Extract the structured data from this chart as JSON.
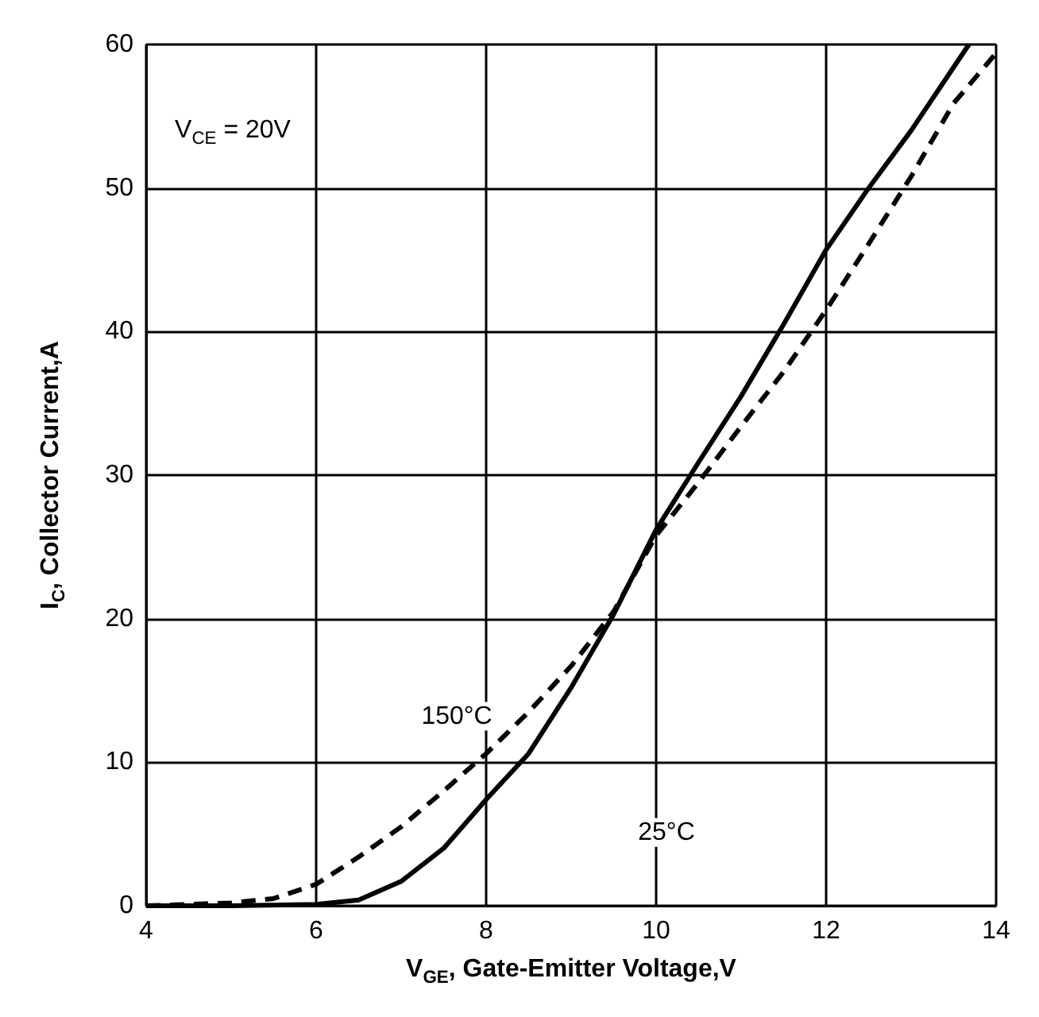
{
  "chart_data": {
    "type": "line",
    "xlabel": "V$_{GE}$, Gate-Emitter Voltage,V",
    "ylabel": "I$_{C}$, Collector Current,A",
    "xlim": [
      4,
      14
    ],
    "xticks": [
      4,
      6,
      8,
      10,
      12,
      14
    ],
    "ylim": [
      0,
      60
    ],
    "yticks": [
      0,
      10,
      20,
      30,
      40,
      50,
      60
    ],
    "grid": true,
    "marker": "none",
    "annotations": [
      "V$_{CE}$ = 20V",
      "150°C",
      "25°C"
    ],
    "series": [
      {
        "color": "#000000",
        "line_style": "solid",
        "x": [
          4,
          5,
          6,
          6.5,
          7,
          7.5,
          8,
          8.5,
          9,
          9.5,
          10,
          10.5,
          11,
          11.5,
          12,
          12.5,
          13,
          13.68
        ],
        "values": [
          0,
          0,
          0.1,
          0.4,
          1.7,
          4,
          7.4,
          10.6,
          15.2,
          20.3,
          26.2,
          30.9,
          35.5,
          40.5,
          45.7,
          50,
          54,
          60
        ]
      },
      {
        "color": "#000000",
        "line_style": "dashed",
        "x": [
          4,
          5,
          5.5,
          6,
          6.5,
          7,
          7.5,
          8,
          8.5,
          9,
          9.5,
          10,
          10.5,
          11,
          11.5,
          12,
          12.5,
          13,
          13.5,
          14
        ],
        "values": [
          0,
          0.2,
          0.5,
          1.5,
          3.4,
          5.5,
          8,
          10.6,
          13.5,
          16.7,
          20.5,
          25.8,
          29.5,
          33.4,
          37.2,
          41.5,
          46.1,
          50.8,
          55.9,
          59.4
        ]
      }
    ]
  }
}
